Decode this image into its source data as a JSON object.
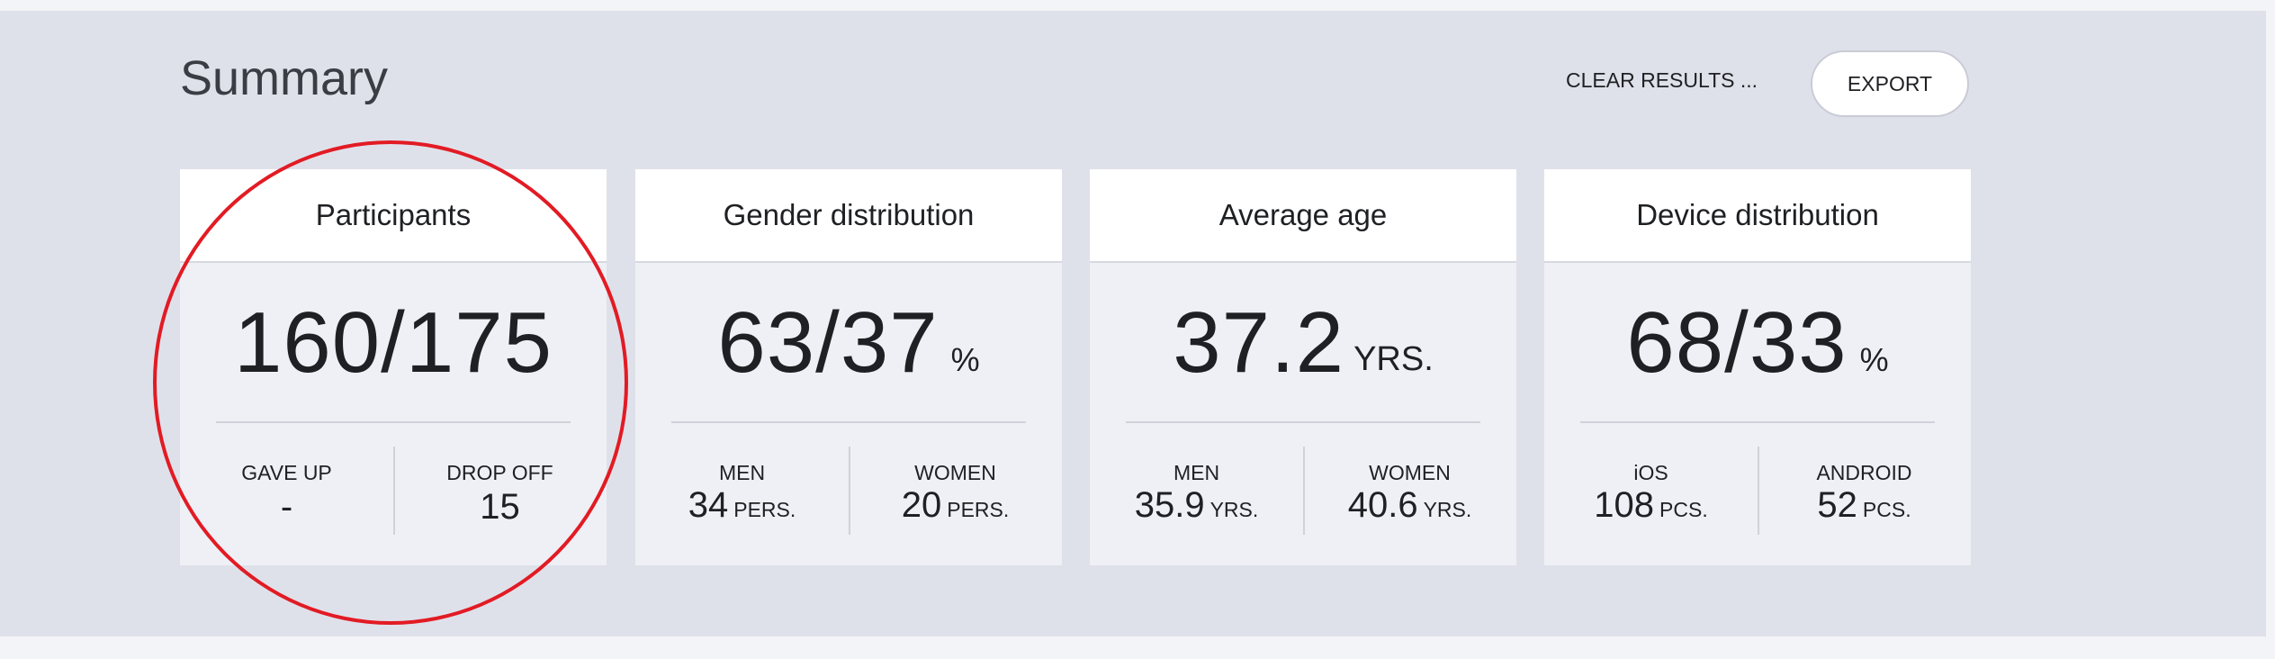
{
  "header": {
    "title": "Summary",
    "clear_label": "CLEAR RESULTS ...",
    "export_label": "EXPORT"
  },
  "cards": [
    {
      "title": "Participants",
      "value": "160/175",
      "unit": "",
      "left": {
        "label": "GAVE UP",
        "value": "-",
        "unit": ""
      },
      "right": {
        "label": "DROP OFF",
        "value": "15",
        "unit": ""
      }
    },
    {
      "title": "Gender distribution",
      "value": "63/37",
      "unit": "%",
      "left": {
        "label": "MEN",
        "value": "34",
        "unit": "PERS."
      },
      "right": {
        "label": "WOMEN",
        "value": "20",
        "unit": "PERS."
      }
    },
    {
      "title": "Average age",
      "value": "37.2",
      "unit": "YRS.",
      "left": {
        "label": "MEN",
        "value": "35.9",
        "unit": "YRS."
      },
      "right": {
        "label": "WOMEN",
        "value": "40.6",
        "unit": "YRS."
      }
    },
    {
      "title": "Device distribution",
      "value": "68/33",
      "unit": "%",
      "left": {
        "label": "iOS",
        "value": "108",
        "unit": "PCS."
      },
      "right": {
        "label": "ANDROID",
        "value": "52",
        "unit": "PCS."
      }
    }
  ],
  "colors": {
    "panel_bg": "#dfe1ea",
    "card_bg": "#eef0f5",
    "highlight_ring": "#e21b24"
  }
}
